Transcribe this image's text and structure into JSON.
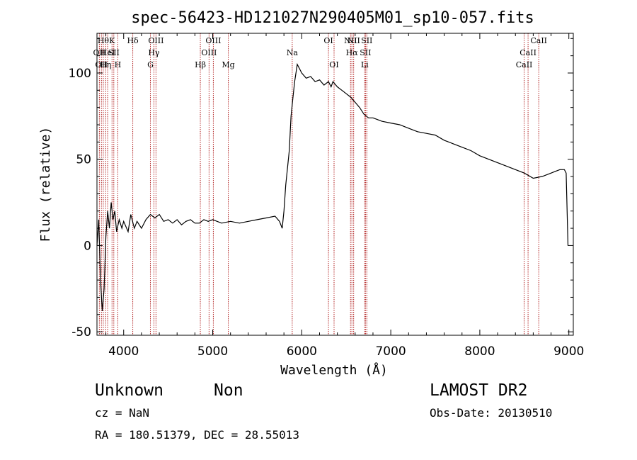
{
  "chart_data": {
    "type": "line",
    "title": "spec-56423-HD121027N290405M01_sp10-057.fits",
    "xlabel": "Wavelength (Å)",
    "ylabel": "Flux (relative)",
    "xlim": [
      3700,
      9050
    ],
    "ylim": [
      -52,
      123
    ],
    "xticks": [
      4000,
      5000,
      6000,
      7000,
      8000,
      9000
    ],
    "yticks": [
      -50,
      0,
      50,
      100
    ],
    "grid": false,
    "series": [
      {
        "color": "#000000",
        "points": [
          [
            3700,
            0
          ],
          [
            3720,
            15
          ],
          [
            3740,
            -20
          ],
          [
            3760,
            -38
          ],
          [
            3780,
            -25
          ],
          [
            3800,
            5
          ],
          [
            3820,
            20
          ],
          [
            3840,
            10
          ],
          [
            3860,
            25
          ],
          [
            3880,
            15
          ],
          [
            3900,
            20
          ],
          [
            3920,
            8
          ],
          [
            3950,
            15
          ],
          [
            3980,
            10
          ],
          [
            4000,
            14
          ],
          [
            4050,
            8
          ],
          [
            4080,
            18
          ],
          [
            4120,
            10
          ],
          [
            4150,
            14
          ],
          [
            4200,
            10
          ],
          [
            4250,
            15
          ],
          [
            4300,
            18
          ],
          [
            4350,
            16
          ],
          [
            4400,
            18
          ],
          [
            4450,
            14
          ],
          [
            4500,
            15
          ],
          [
            4550,
            13
          ],
          [
            4600,
            15
          ],
          [
            4650,
            12
          ],
          [
            4700,
            14
          ],
          [
            4750,
            15
          ],
          [
            4800,
            13
          ],
          [
            4850,
            13
          ],
          [
            4900,
            15
          ],
          [
            4950,
            14
          ],
          [
            5000,
            15
          ],
          [
            5100,
            13
          ],
          [
            5200,
            14
          ],
          [
            5300,
            13
          ],
          [
            5400,
            14
          ],
          [
            5500,
            15
          ],
          [
            5600,
            16
          ],
          [
            5700,
            17
          ],
          [
            5750,
            14
          ],
          [
            5780,
            10
          ],
          [
            5800,
            20
          ],
          [
            5820,
            35
          ],
          [
            5840,
            45
          ],
          [
            5860,
            55
          ],
          [
            5880,
            75
          ],
          [
            5900,
            85
          ],
          [
            5920,
            95
          ],
          [
            5950,
            105
          ],
          [
            5980,
            102
          ],
          [
            6000,
            100
          ],
          [
            6050,
            97
          ],
          [
            6100,
            98
          ],
          [
            6150,
            95
          ],
          [
            6200,
            96
          ],
          [
            6250,
            93
          ],
          [
            6300,
            95
          ],
          [
            6330,
            92
          ],
          [
            6350,
            95
          ],
          [
            6400,
            92
          ],
          [
            6450,
            90
          ],
          [
            6500,
            88
          ],
          [
            6550,
            86
          ],
          [
            6600,
            83
          ],
          [
            6650,
            80
          ],
          [
            6700,
            76
          ],
          [
            6750,
            74
          ],
          [
            6800,
            74
          ],
          [
            6850,
            73
          ],
          [
            6900,
            72
          ],
          [
            7000,
            71
          ],
          [
            7100,
            70
          ],
          [
            7200,
            68
          ],
          [
            7300,
            66
          ],
          [
            7400,
            65
          ],
          [
            7500,
            64
          ],
          [
            7600,
            61
          ],
          [
            7700,
            59
          ],
          [
            7800,
            57
          ],
          [
            7900,
            55
          ],
          [
            8000,
            52
          ],
          [
            8100,
            50
          ],
          [
            8200,
            48
          ],
          [
            8300,
            46
          ],
          [
            8400,
            44
          ],
          [
            8500,
            42
          ],
          [
            8600,
            39
          ],
          [
            8700,
            40
          ],
          [
            8800,
            42
          ],
          [
            8850,
            43
          ],
          [
            8900,
            44
          ],
          [
            8950,
            44
          ],
          [
            8970,
            42
          ],
          [
            8990,
            0
          ]
        ]
      }
    ],
    "lines_color": "#b22222",
    "line_labels": [
      {
        "w": 3727,
        "text": "OII",
        "row": 2
      },
      {
        "w": 3750,
        "text": "OII",
        "row": 3
      },
      {
        "w": 3771,
        "text": "Hθ",
        "row": 1
      },
      {
        "w": 3798,
        "text": "Hη",
        "row": 3
      },
      {
        "w": 3820,
        "text": "HeI",
        "row": 2
      },
      {
        "w": 3869,
        "text": "K",
        "row": 1
      },
      {
        "w": 3889,
        "text": "SII",
        "row": 2
      },
      {
        "w": 3934,
        "text": "H",
        "row": 3
      },
      {
        "w": 4102,
        "text": "Hδ",
        "row": 1
      },
      {
        "w": 4300,
        "text": "G",
        "row": 3
      },
      {
        "w": 4340,
        "text": "Hγ",
        "row": 2
      },
      {
        "w": 4363,
        "text": "OIII",
        "row": 1
      },
      {
        "w": 4861,
        "text": "Hβ",
        "row": 3
      },
      {
        "w": 4959,
        "text": "OIII",
        "row": 2
      },
      {
        "w": 5007,
        "text": "OIII",
        "row": 1
      },
      {
        "w": 5175,
        "text": "Mg",
        "row": 3
      },
      {
        "w": 5893,
        "text": "Na",
        "row": 2
      },
      {
        "w": 6300,
        "text": "OI",
        "row": 1
      },
      {
        "w": 6363,
        "text": "OI",
        "row": 3
      },
      {
        "w": 6548,
        "text": "NII",
        "row": 1
      },
      {
        "w": 6563,
        "text": "Hα",
        "row": 2
      },
      {
        "w": 6583,
        "text": "NII",
        "row": 1
      },
      {
        "w": 6707,
        "text": "Li",
        "row": 3
      },
      {
        "w": 6716,
        "text": "SII",
        "row": 2
      },
      {
        "w": 6731,
        "text": "SII",
        "row": 1
      },
      {
        "w": 8498,
        "text": "CaII",
        "row": 3
      },
      {
        "w": 8542,
        "text": "CaII",
        "row": 2
      },
      {
        "w": 8662,
        "text": "CaII",
        "row": 1
      }
    ]
  },
  "info": {
    "object_name": "Unknown",
    "object_class": "Non",
    "redshift": "cz = NaN",
    "coords": "RA = 180.51379, DEC =  28.55013",
    "survey": "LAMOST DR2",
    "obs_date": "Obs-Date: 20130510"
  }
}
